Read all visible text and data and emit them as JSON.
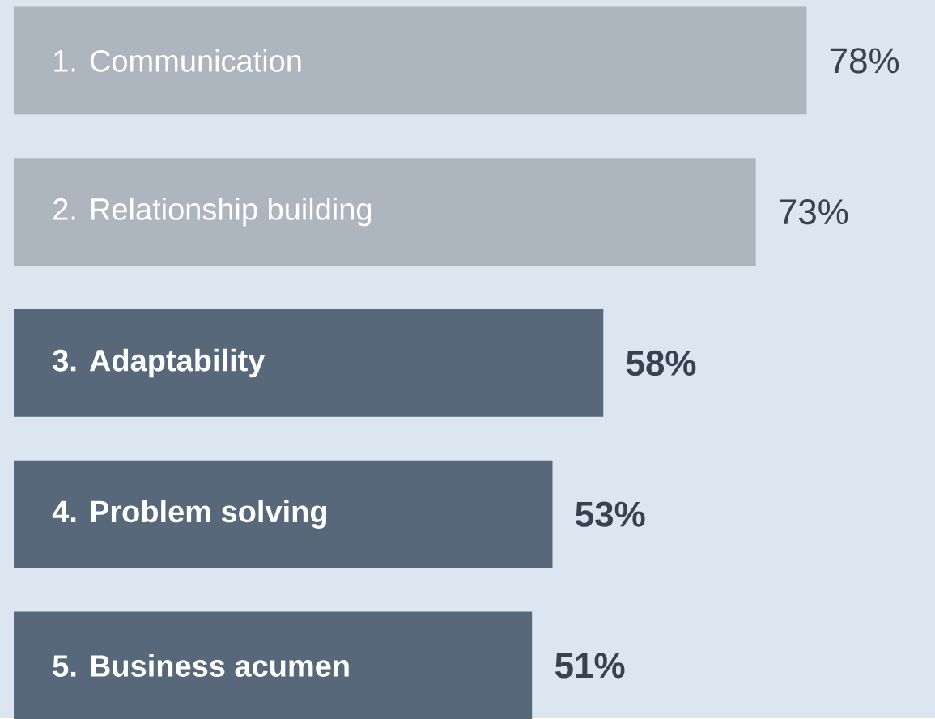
{
  "chart_data": {
    "type": "bar",
    "orientation": "horizontal",
    "categories": [
      "1. Communication",
      "2. Relationship building",
      "3. Adaptability",
      "4. Problem solving",
      "5. Business acumen"
    ],
    "values": [
      78,
      73,
      58,
      53,
      51
    ],
    "colors": [
      "#adb5bf",
      "#adb5bf",
      "#56687a",
      "#56687a",
      "#56687a"
    ],
    "value_labels": [
      "78%",
      "73%",
      "58%",
      "53%",
      "51%"
    ]
  }
}
